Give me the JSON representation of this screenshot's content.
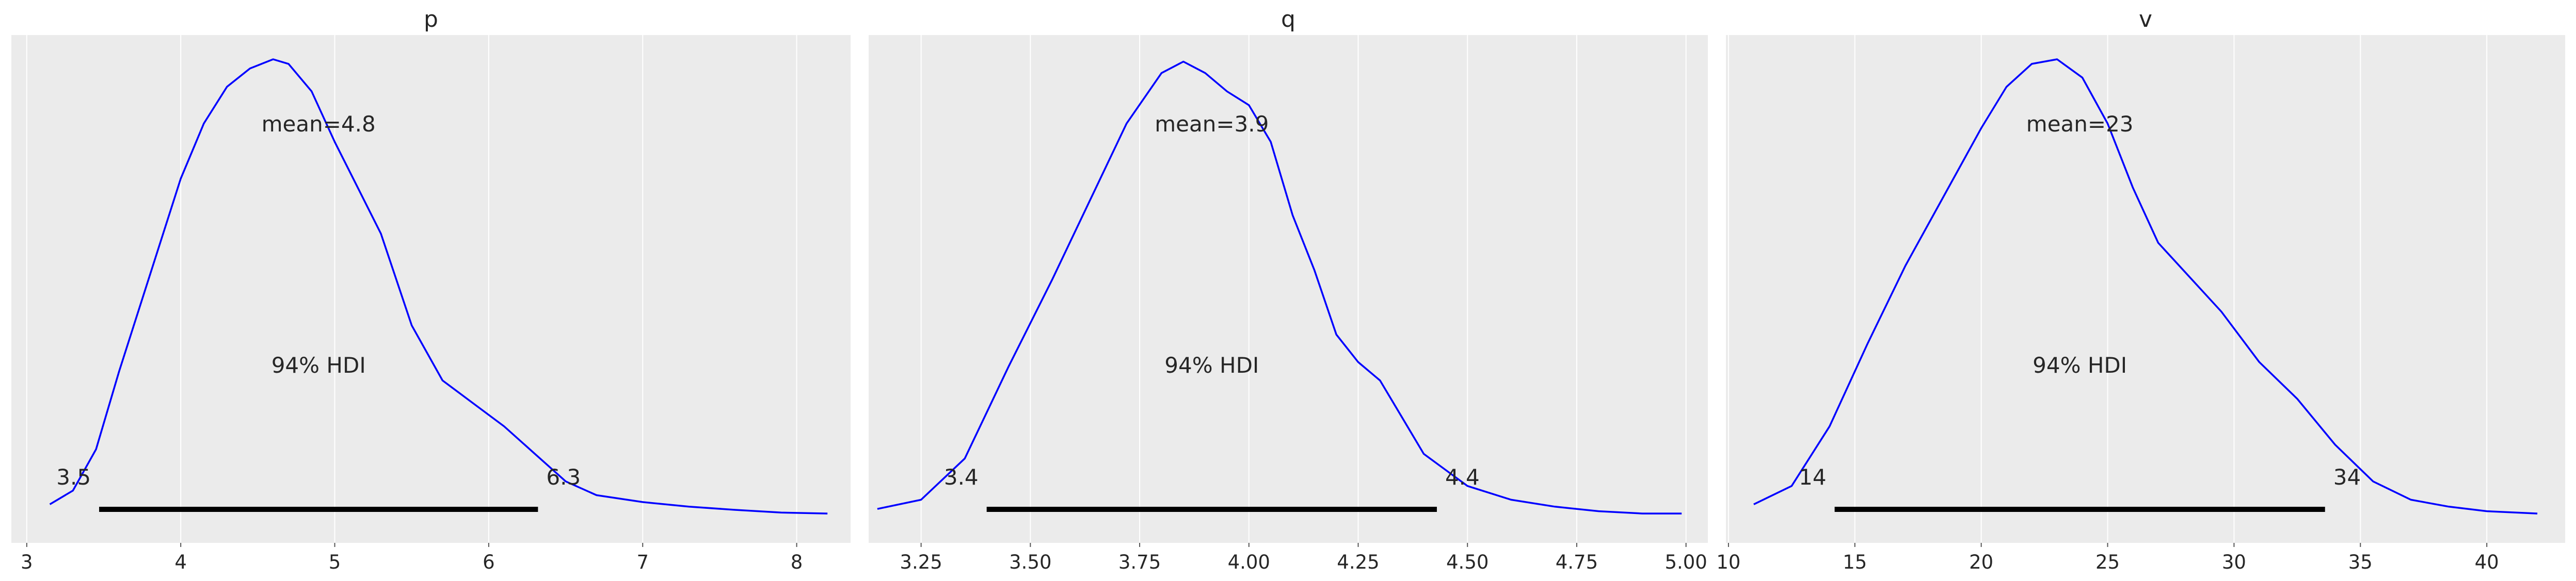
{
  "chart_data": [
    {
      "type": "line",
      "title": "p",
      "xlim": [
        2.9,
        8.35
      ],
      "xticks": [
        3,
        4,
        5,
        6,
        7,
        8
      ],
      "xtick_labels": [
        "3",
        "4",
        "5",
        "6",
        "7",
        "8"
      ],
      "grid": true,
      "series": [
        {
          "color": "#0000ff",
          "x": [
            3.15,
            3.3,
            3.45,
            3.6,
            3.8,
            4.0,
            4.15,
            4.3,
            4.45,
            4.6,
            4.7,
            4.85,
            5.0,
            5.15,
            5.3,
            5.5,
            5.7,
            5.9,
            6.1,
            6.3,
            6.5,
            6.7,
            7.0,
            7.3,
            7.6,
            7.9,
            8.2
          ],
          "y": [
            0.03,
            0.06,
            0.15,
            0.32,
            0.53,
            0.74,
            0.86,
            0.94,
            0.98,
            1.0,
            0.99,
            0.93,
            0.82,
            0.72,
            0.62,
            0.42,
            0.3,
            0.25,
            0.2,
            0.14,
            0.08,
            0.05,
            0.035,
            0.025,
            0.018,
            0.012,
            0.01
          ]
        }
      ],
      "annotations": {
        "mean_label": "mean=4.8",
        "hdi_label": "94% HDI",
        "hdi_low": 3.47,
        "hdi_high": 6.32,
        "hdi_low_label": "3.5",
        "hdi_high_label": "6.3"
      }
    },
    {
      "type": "line",
      "title": "q",
      "xlim": [
        3.13,
        5.05
      ],
      "xticks": [
        3.25,
        3.5,
        3.75,
        4.0,
        4.25,
        4.5,
        4.75,
        5.0
      ],
      "xtick_labels": [
        "3.25",
        "3.50",
        "3.75",
        "4.00",
        "4.25",
        "4.50",
        "4.75",
        "5.00"
      ],
      "grid": true,
      "series": [
        {
          "color": "#0000ff",
          "x": [
            3.15,
            3.25,
            3.35,
            3.45,
            3.55,
            3.65,
            3.72,
            3.8,
            3.85,
            3.9,
            3.95,
            4.0,
            4.05,
            4.1,
            4.15,
            4.2,
            4.25,
            4.3,
            4.35,
            4.4,
            4.5,
            4.6,
            4.7,
            4.8,
            4.9,
            4.99
          ],
          "y": [
            0.02,
            0.04,
            0.13,
            0.33,
            0.52,
            0.72,
            0.86,
            0.97,
            0.995,
            0.97,
            0.93,
            0.9,
            0.82,
            0.66,
            0.54,
            0.4,
            0.34,
            0.3,
            0.22,
            0.14,
            0.07,
            0.04,
            0.025,
            0.015,
            0.01,
            0.01
          ]
        }
      ],
      "annotations": {
        "mean_label": "mean=3.9",
        "hdi_label": "94% HDI",
        "hdi_low": 3.4,
        "hdi_high": 4.43,
        "hdi_low_label": "3.4",
        "hdi_high_label": "4.4"
      }
    },
    {
      "type": "line",
      "title": "v",
      "xlim": [
        9.9,
        43.1
      ],
      "xticks": [
        10,
        15,
        20,
        25,
        30,
        35,
        40
      ],
      "xtick_labels": [
        "10",
        "15",
        "20",
        "25",
        "30",
        "35",
        "40"
      ],
      "grid": true,
      "series": [
        {
          "color": "#0000ff",
          "x": [
            11.0,
            12.5,
            14.0,
            15.5,
            17.0,
            18.5,
            20.0,
            21.0,
            22.0,
            23.0,
            24.0,
            25.0,
            26.0,
            27.0,
            28.0,
            29.5,
            31.0,
            32.5,
            34.0,
            35.5,
            37.0,
            38.5,
            40.0,
            42.0
          ],
          "y": [
            0.03,
            0.07,
            0.2,
            0.38,
            0.55,
            0.7,
            0.85,
            0.94,
            0.99,
            1.0,
            0.96,
            0.86,
            0.72,
            0.6,
            0.54,
            0.45,
            0.34,
            0.26,
            0.16,
            0.08,
            0.04,
            0.025,
            0.015,
            0.01
          ]
        }
      ],
      "annotations": {
        "mean_label": "mean=23",
        "hdi_label": "94% HDI",
        "hdi_low": 14.2,
        "hdi_high": 33.6,
        "hdi_low_label": "14",
        "hdi_high_label": "34"
      }
    }
  ]
}
